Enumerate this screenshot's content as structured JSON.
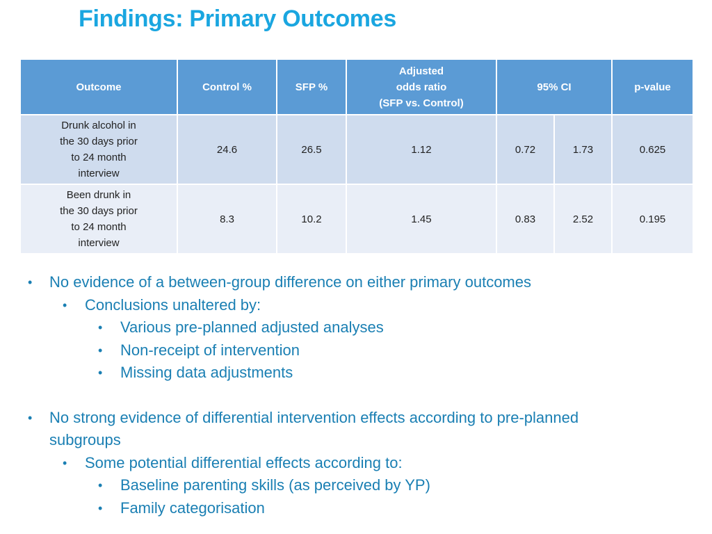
{
  "title": "Findings: Primary Outcomes",
  "table": {
    "headers": {
      "outcome": "Outcome",
      "control": "Control %",
      "sfp": "SFP %",
      "odds_line1": "Adjusted",
      "odds_line2": "odds ratio",
      "odds_line3": "(SFP vs. Control)",
      "ci": "95% CI",
      "pvalue": "p-value"
    },
    "rows": [
      {
        "outcome_lines": [
          "Drunk alcohol in",
          "the 30 days prior",
          "to 24 month",
          "interview"
        ],
        "control": "24.6",
        "sfp": "26.5",
        "odds_ratio": "1.12",
        "ci_low": "0.72",
        "ci_high": "1.73",
        "pvalue": "0.625"
      },
      {
        "outcome_lines": [
          "Been drunk in",
          "the 30 days prior",
          "to 24 month",
          "interview"
        ],
        "control": "8.3",
        "sfp": "10.2",
        "odds_ratio": "1.45",
        "ci_low": "0.83",
        "ci_high": "2.52",
        "pvalue": "0.195"
      }
    ]
  },
  "bullets": {
    "b1": "No evidence of a between-group difference on either primary outcomes",
    "b1_sub": "Conclusions unaltered by:",
    "b1_sub_items": [
      "Various pre-planned adjusted analyses",
      "Non-receipt of intervention",
      "Missing data adjustments"
    ],
    "b2_line1": "No strong evidence of differential intervention effects according to pre-planned",
    "b2_line2": "subgroups",
    "b2_sub": "Some potential differential effects according to:",
    "b2_sub_items": [
      "Baseline parenting skills (as perceived by YP)",
      "Family categorisation"
    ],
    "bullet_char": "•"
  }
}
